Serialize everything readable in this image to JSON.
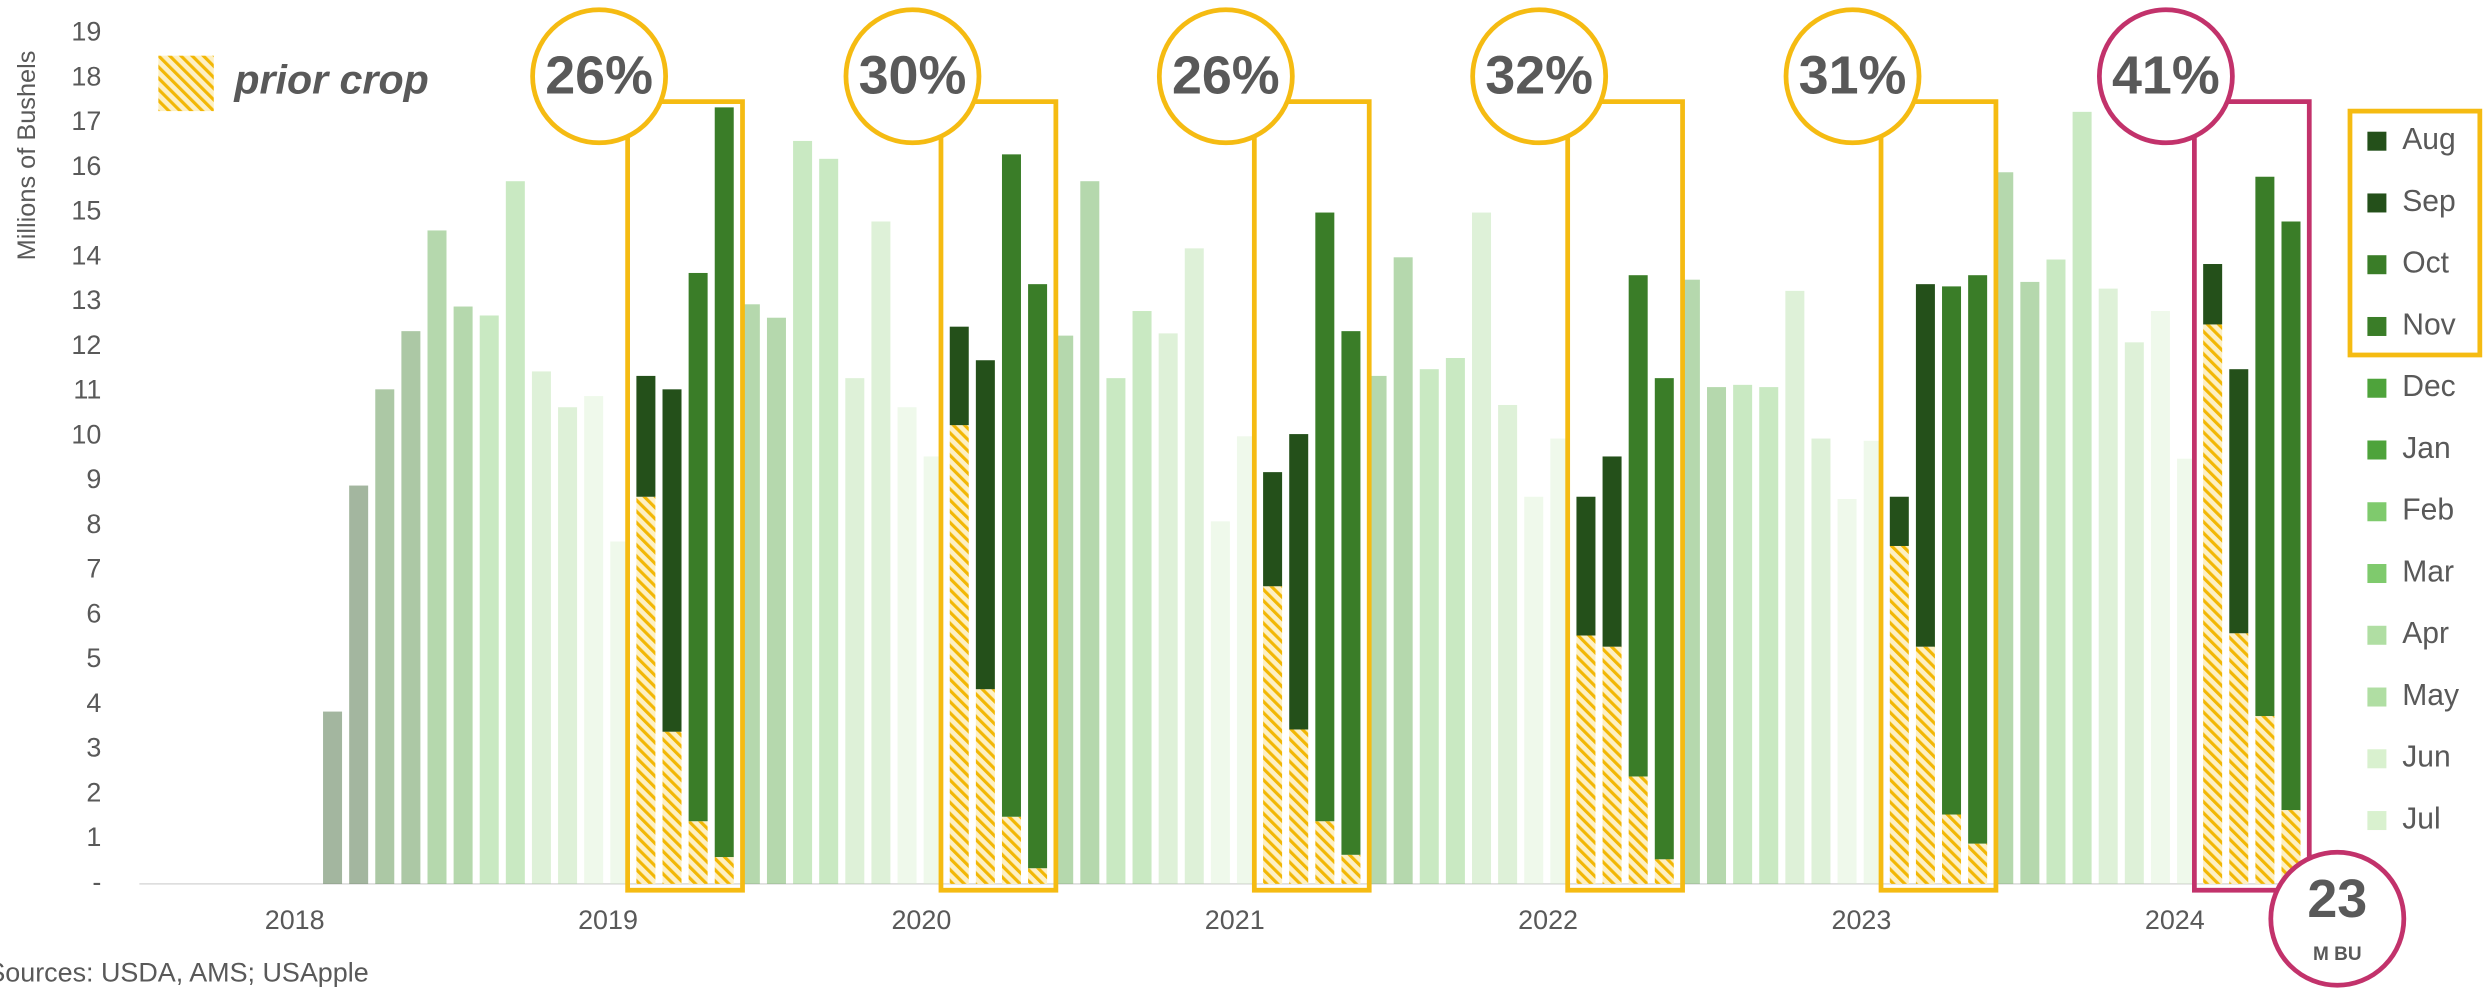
{
  "chart_data": {
    "type": "bar",
    "stacked": true,
    "y_label": "Millions of Bushels",
    "source": "Sources: USDA, AMS; USApple",
    "prior_label": "prior crop",
    "prior_color": "#f2b705",
    "ylim": [
      0,
      19
    ],
    "yticks": [
      {
        "value": 0,
        "label": "-"
      },
      1,
      2,
      3,
      4,
      5,
      6,
      7,
      8,
      9,
      10,
      11,
      12,
      13,
      14,
      15,
      16,
      17,
      18,
      19
    ],
    "x_labels": [
      "2018",
      "2019",
      "2020",
      "2021",
      "2022",
      "2023",
      "2024"
    ],
    "months": [
      {
        "name": "Aug",
        "color": "#24501a"
      },
      {
        "name": "Sep",
        "color": "#24501a"
      },
      {
        "name": "Oct",
        "color": "#3a7d28"
      },
      {
        "name": "Nov",
        "color": "#3a7d28"
      },
      {
        "name": "Dec",
        "color": "#4ea33b"
      },
      {
        "name": "Jan",
        "color": "#4ea33b"
      },
      {
        "name": "Feb",
        "color": "#7fca6d"
      },
      {
        "name": "Mar",
        "color": "#7fca6d"
      },
      {
        "name": "Apr",
        "color": "#b0dea3"
      },
      {
        "name": "May",
        "color": "#b0dea3"
      },
      {
        "name": "Jun",
        "color": "#d9f1cf"
      },
      {
        "name": "Jul",
        "color": "#d9f1cf"
      }
    ],
    "current": [
      3.85,
      8.9,
      11.05,
      12.35,
      14.6,
      12.9,
      12.7,
      15.7,
      11.45,
      10.65,
      10.9,
      7.65,
      2.7,
      7.65,
      12.25,
      16.75,
      12.95,
      12.65,
      16.6,
      16.2,
      11.3,
      14.8,
      10.65,
      9.55,
      2.2,
      7.35,
      14.8,
      13.05,
      12.25,
      15.7,
      11.3,
      12.8,
      12.3,
      14.2,
      8.1,
      10.0,
      2.55,
      6.6,
      13.6,
      11.7,
      11.35,
      14.0,
      11.5,
      11.75,
      15.0,
      10.7,
      8.65,
      9.95,
      3.1,
      4.25,
      11.2,
      10.75,
      13.5,
      11.1,
      11.15,
      11.1,
      13.25,
      9.95,
      8.6,
      9.9,
      1.1,
      8.1,
      11.8,
      12.7,
      15.9,
      13.45,
      13.95,
      17.25,
      13.3,
      12.1,
      12.8,
      9.5,
      1.35,
      5.9,
      12.05,
      13.15
    ],
    "prior": [
      null,
      null,
      null,
      null,
      null,
      null,
      null,
      null,
      null,
      null,
      null,
      null,
      8.65,
      3.4,
      1.4,
      0.6,
      null,
      null,
      null,
      null,
      null,
      null,
      null,
      null,
      10.25,
      4.35,
      1.5,
      0.35,
      null,
      null,
      null,
      null,
      null,
      null,
      null,
      null,
      6.65,
      3.45,
      1.4,
      0.65,
      null,
      null,
      null,
      null,
      null,
      null,
      null,
      null,
      5.55,
      5.3,
      2.4,
      0.55,
      null,
      null,
      null,
      null,
      null,
      null,
      null,
      null,
      7.55,
      5.3,
      1.55,
      0.9,
      null,
      null,
      null,
      null,
      null,
      null,
      null,
      null,
      12.5,
      5.6,
      3.75,
      1.65
    ],
    "highlights": [
      {
        "label": "26%",
        "color": "#f5bb12"
      },
      {
        "label": "30%",
        "color": "#f5bb12"
      },
      {
        "label": "26%",
        "color": "#f5bb12"
      },
      {
        "label": "32%",
        "color": "#f5bb12"
      },
      {
        "label": "31%",
        "color": "#f5bb12"
      },
      {
        "label": "41%",
        "color": "#c2326b"
      }
    ],
    "total": {
      "label": "23",
      "unit": "M BU",
      "color": "#c2326b"
    }
  }
}
